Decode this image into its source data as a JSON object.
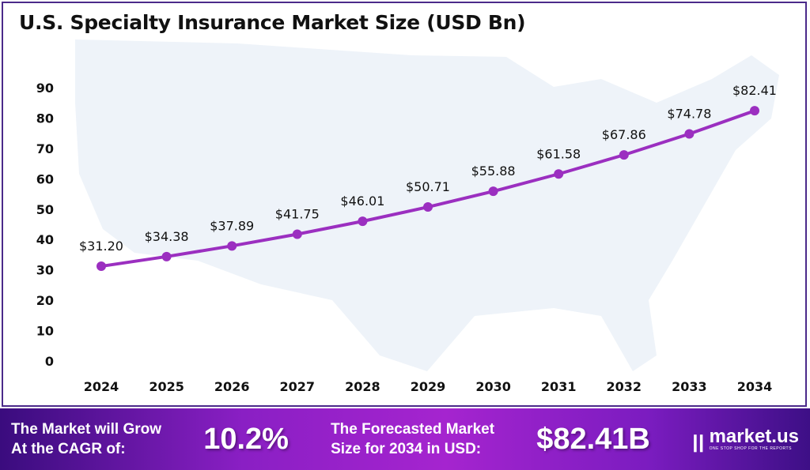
{
  "chart_data": {
    "type": "line",
    "title": "U.S. Specialty Insurance Market Size (USD Bn)",
    "categories": [
      "2024",
      "2025",
      "2026",
      "2027",
      "2028",
      "2029",
      "2030",
      "2031",
      "2032",
      "2033",
      "2034"
    ],
    "values": [
      31.2,
      34.38,
      37.89,
      41.75,
      46.01,
      50.71,
      55.88,
      61.58,
      67.86,
      74.78,
      82.41
    ],
    "data_labels": [
      "$31.20",
      "$34.38",
      "$37.89",
      "$41.75",
      "$46.01",
      "$50.71",
      "$55.88",
      "$61.58",
      "$67.86",
      "$74.78",
      "$82.41"
    ],
    "yticks": [
      "0",
      "10",
      "20",
      "30",
      "40",
      "50",
      "60",
      "70",
      "80",
      "90"
    ],
    "ylim": [
      0,
      90
    ],
    "xlabel": "",
    "ylabel": "",
    "grid": false,
    "line_color": "#9b2fc0"
  },
  "footer": {
    "cagr_label_1": "The Market will Grow",
    "cagr_label_2": "At the CAGR of:",
    "cagr_value": "10.2%",
    "forecast_label_1": "The Forecasted Market",
    "forecast_label_2": "Size for 2034 in USD:",
    "forecast_value": "$82.41B",
    "logo_name": "market.us",
    "logo_tagline": "ONE STOP SHOP FOR THE REPORTS"
  }
}
